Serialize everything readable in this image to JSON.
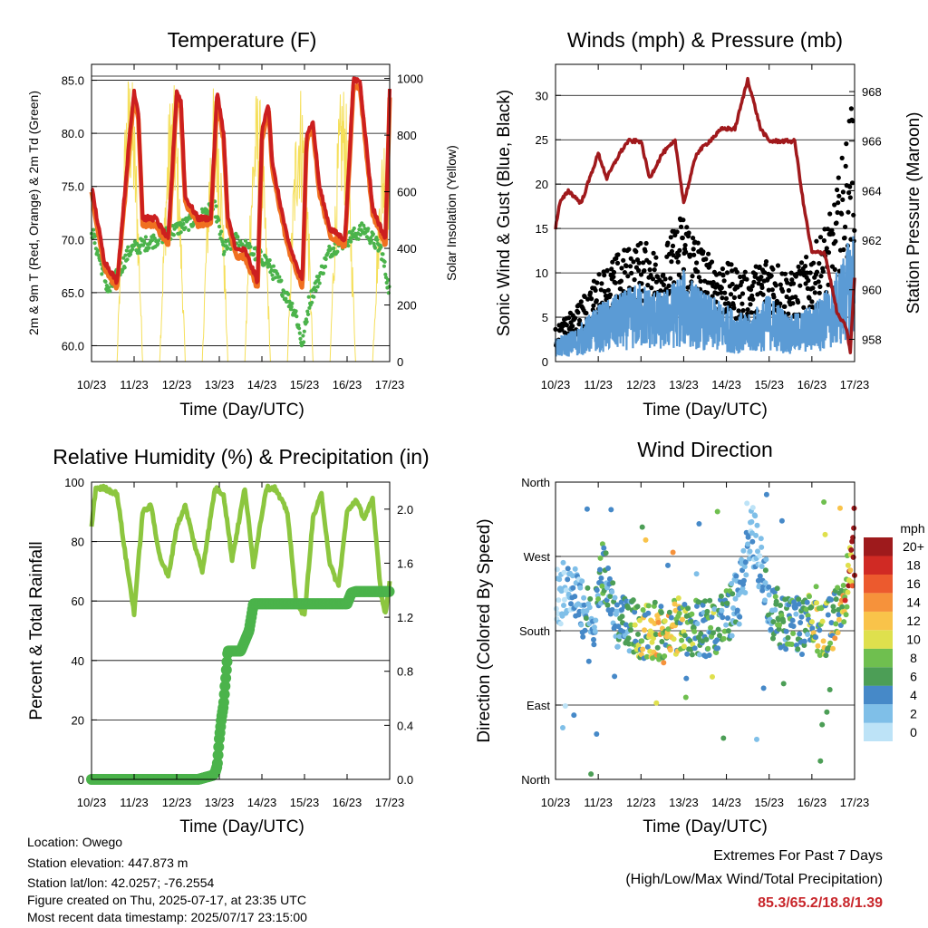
{
  "chart_data": [
    {
      "id": "temp",
      "type": "line",
      "title": "Temperature (F)",
      "xlabel": "Time (Day/UTC)",
      "ylabel": "2m & 9m T (Red, Orange) & 2m Td (Green)",
      "ylabel_right": "Solar Insolation (Yellow)",
      "x_ticks": [
        "10/23",
        "11/23",
        "12/23",
        "13/23",
        "14/23",
        "15/23",
        "16/23",
        "17/23"
      ],
      "ylim": [
        58.5,
        86.5
      ],
      "y_ticks": [
        "60.0",
        "65.0",
        "70.0",
        "75.0",
        "80.0",
        "85.0"
      ],
      "y_tick_values": [
        60,
        65,
        70,
        75,
        80,
        85
      ],
      "ylim_right": [
        0,
        1050
      ],
      "y_ticks_right": [
        "0",
        "200",
        "400",
        "600",
        "800",
        "1000"
      ],
      "y_tick_values_right": [
        0,
        200,
        400,
        600,
        800,
        1000
      ],
      "grid": true,
      "colors": {
        "t2m": "#cc1f1f",
        "t9m": "#f07020",
        "td2m": "#4bb34b",
        "solar": "#f5df5a"
      },
      "series": [
        {
          "key": "t2m",
          "days": [
            0,
            0.3,
            0.6,
            0.9,
            1.0,
            1.1,
            1.2,
            1.5,
            1.8,
            2.0,
            2.1,
            2.2,
            2.5,
            2.8,
            2.95,
            3.1,
            3.2,
            3.4,
            3.6,
            3.9,
            4.0,
            4.15,
            4.25,
            4.6,
            4.95,
            5.05,
            5.2,
            5.35,
            5.6,
            5.95,
            6.15,
            6.3,
            6.6,
            6.9,
            7.0
          ],
          "values": [
            75,
            68,
            66,
            80,
            84,
            82,
            72,
            72,
            70,
            84,
            83,
            74,
            72,
            72,
            84,
            80,
            72,
            69,
            69,
            66,
            80,
            83,
            77,
            70,
            66,
            80,
            81,
            75,
            71,
            70,
            85,
            85,
            73,
            70,
            84
          ]
        },
        {
          "key": "td2m",
          "days": [
            0,
            0.4,
            0.9,
            1.5,
            2.0,
            2.5,
            2.9,
            3.1,
            3.4,
            3.7,
            4.1,
            4.4,
            4.8,
            4.95,
            5.1,
            5.3,
            5.6,
            6.0,
            6.4,
            6.8,
            7.0
          ],
          "values": [
            71,
            65,
            69,
            70,
            71,
            72,
            73,
            69,
            70,
            69,
            68,
            66,
            63,
            60,
            64,
            66,
            69,
            70,
            71,
            69,
            65
          ]
        },
        {
          "key": "solar",
          "peak_days": [
            0.9,
            1.9,
            2.9,
            3.9,
            4.9,
            5.9,
            6.9
          ],
          "peak_values": [
            1050,
            1000,
            1000,
            980,
            1000,
            1000,
            850
          ]
        }
      ]
    },
    {
      "id": "winds",
      "type": "scatter",
      "title": "Winds (mph) & Pressure (mb)",
      "xlabel": "Time (Day/UTC)",
      "ylabel": "Sonic Wind & Gust (Blue, Black)",
      "ylabel_right": "Station Pressure (Maroon)",
      "x_ticks": [
        "10/23",
        "11/23",
        "12/23",
        "13/23",
        "14/23",
        "15/23",
        "16/23",
        "17/23"
      ],
      "ylim": [
        0,
        33.5
      ],
      "y_ticks": [
        "0",
        "5",
        "10",
        "15",
        "20",
        "25",
        "30"
      ],
      "y_tick_values": [
        0,
        5,
        10,
        15,
        20,
        25,
        30
      ],
      "ylim_right": [
        957.1,
        969.1
      ],
      "y_ticks_right": [
        "958",
        "960",
        "962",
        "964",
        "966",
        "968"
      ],
      "y_tick_values_right": [
        958,
        960,
        962,
        964,
        966,
        968
      ],
      "grid": true,
      "colors": {
        "wind": "#5b9bd5",
        "gust": "#000000",
        "pressure": "#a0191c"
      },
      "series": [
        {
          "key": "pressure",
          "days": [
            0,
            0.1,
            0.3,
            0.6,
            1.0,
            1.2,
            1.5,
            1.7,
            2.0,
            2.2,
            2.5,
            2.8,
            3.0,
            3.3,
            3.6,
            3.9,
            4.2,
            4.5,
            4.8,
            5.0,
            5.3,
            5.6,
            5.8,
            6.0,
            6.3,
            6.6,
            6.8,
            6.9,
            7.0
          ],
          "values": [
            962.5,
            963.5,
            964,
            963.5,
            965.5,
            964.5,
            965.5,
            966,
            966,
            964.5,
            965.5,
            966,
            963.5,
            965.5,
            966,
            966.5,
            966.5,
            968.5,
            966.5,
            966,
            966,
            966,
            963.5,
            961.5,
            961.5,
            959,
            958.5,
            957.5,
            960.5
          ]
        },
        {
          "key": "wind",
          "days": [
            0,
            0.5,
            1.0,
            1.5,
            2.0,
            2.5,
            3.0,
            3.5,
            4.0,
            4.5,
            5.0,
            5.5,
            6.0,
            6.5,
            7.0
          ],
          "values": [
            2,
            3,
            5,
            6,
            7,
            6,
            8,
            6,
            5,
            4,
            6,
            4,
            5,
            7,
            12
          ]
        },
        {
          "key": "gust",
          "days": [
            0,
            0.5,
            1.0,
            1.5,
            2.0,
            2.5,
            3.0,
            3.5,
            4.0,
            4.5,
            5.0,
            5.5,
            6.0,
            6.5,
            7.0
          ],
          "values": [
            3,
            5,
            8,
            10,
            11,
            10,
            14,
            10,
            9,
            8,
            10,
            8,
            10,
            14,
            25
          ]
        }
      ]
    },
    {
      "id": "rh",
      "type": "line",
      "title": "Relative Humidity (%) & Precipitation (in)",
      "xlabel": "Time (Day/UTC)",
      "ylabel": "Percent & Total Rainfall",
      "x_ticks": [
        "10/23",
        "11/23",
        "12/23",
        "13/23",
        "14/23",
        "15/23",
        "16/23",
        "17/23"
      ],
      "ylim": [
        0,
        100
      ],
      "y_ticks": [
        "0",
        "20",
        "40",
        "60",
        "80",
        "100"
      ],
      "y_tick_values": [
        0,
        20,
        40,
        60,
        80,
        100
      ],
      "ylim_right": [
        0,
        2.2
      ],
      "y_ticks_right": [
        "0.0",
        "0.4",
        "0.8",
        "1.2",
        "1.6",
        "2.0"
      ],
      "y_tick_values_right": [
        0,
        0.4,
        0.8,
        1.2,
        1.6,
        2.0
      ],
      "grid": true,
      "colors": {
        "rh": "#8cc63f",
        "precip": "#4bb34b"
      },
      "series": [
        {
          "key": "rh",
          "days": [
            0,
            0.1,
            0.3,
            0.6,
            0.8,
            1.0,
            1.2,
            1.4,
            1.6,
            1.8,
            2.0,
            2.2,
            2.4,
            2.6,
            2.9,
            3.1,
            3.3,
            3.6,
            3.8,
            4.1,
            4.3,
            4.6,
            4.8,
            5.0,
            5.2,
            5.4,
            5.6,
            5.8,
            6.0,
            6.2,
            6.4,
            6.6,
            6.8,
            6.9,
            7.0
          ],
          "values": [
            85,
            98,
            98,
            96,
            75,
            56,
            90,
            92,
            75,
            68,
            85,
            92,
            80,
            70,
            98,
            96,
            74,
            98,
            72,
            98,
            98,
            90,
            60,
            55,
            88,
            96,
            72,
            65,
            90,
            94,
            88,
            94,
            62,
            56,
            66
          ]
        },
        {
          "key": "precip",
          "days": [
            0,
            1.0,
            2.5,
            2.85,
            2.9,
            2.95,
            3.0,
            3.05,
            3.1,
            3.15,
            3.2,
            3.5,
            3.7,
            3.8,
            4.0,
            6.0,
            6.1,
            6.2,
            6.6,
            7.0
          ],
          "values": [
            0,
            0,
            0,
            0.03,
            0.05,
            0.1,
            0.3,
            0.45,
            0.55,
            0.75,
            0.95,
            0.95,
            1.1,
            1.3,
            1.3,
            1.3,
            1.38,
            1.39,
            1.39,
            1.39
          ]
        }
      ]
    },
    {
      "id": "wdir",
      "type": "scatter",
      "title": "Wind Direction",
      "xlabel": "Time (Day/UTC)",
      "ylabel": "Direction (Colored By Speed)",
      "x_ticks": [
        "10/23",
        "11/23",
        "12/23",
        "13/23",
        "14/23",
        "15/23",
        "16/23",
        "17/23"
      ],
      "y_ticks": [
        "North",
        "East",
        "South",
        "West",
        "North"
      ],
      "y_tick_values": [
        0,
        90,
        180,
        270,
        360
      ],
      "ylim": [
        0,
        360
      ],
      "grid": true,
      "colorbar_title": "mph",
      "colorbar_labels": [
        "0",
        "2",
        "4",
        "6",
        "8",
        "10",
        "12",
        "14",
        "16",
        "18",
        "20+"
      ],
      "colorbar_colors": [
        "#bde3f7",
        "#7fbfe8",
        "#4689c8",
        "#4c9e56",
        "#6fbf4f",
        "#dfe04d",
        "#f9c34a",
        "#f6923b",
        "#ec5a2e",
        "#d02a24",
        "#9e1a1c"
      ],
      "series": [
        {
          "name": "",
          "days": [
            0.1,
            0.3,
            0.6,
            0.9,
            1.1,
            1.4,
            1.7,
            2.0,
            2.3,
            2.6,
            2.9,
            3.1,
            3.4,
            3.7,
            4.0,
            4.3,
            4.6,
            4.9,
            5.1,
            5.4,
            5.7,
            6.0,
            6.3,
            6.6,
            6.9,
            7.0
          ],
          "directions": [
            220,
            240,
            210,
            190,
            260,
            190,
            185,
            180,
            180,
            175,
            190,
            185,
            180,
            185,
            200,
            220,
            300,
            240,
            200,
            190,
            185,
            190,
            180,
            200,
            250,
            280
          ],
          "speeds": [
            2,
            3,
            4,
            5,
            7,
            4,
            6,
            9,
            10,
            11,
            9,
            8,
            5,
            7,
            6,
            4,
            3,
            4,
            6,
            7,
            5,
            8,
            9,
            10,
            16,
            21
          ]
        }
      ]
    }
  ],
  "info": {
    "location": "Location: Owego",
    "elevation": "Station elevation: 447.873 m",
    "latlon": "Station lat/lon: 42.0257; -76.2554",
    "created": "Figure created on Thu, 2025-07-17, at 23:35 UTC",
    "recent": "Most recent data timestamp: 2025/07/17 23:15:00"
  },
  "extremes": {
    "title": "Extremes For Past 7 Days",
    "subtitle": "(High/Low/Max Wind/Total Precipitation)",
    "values": "85.3/65.2/18.8/1.39"
  }
}
